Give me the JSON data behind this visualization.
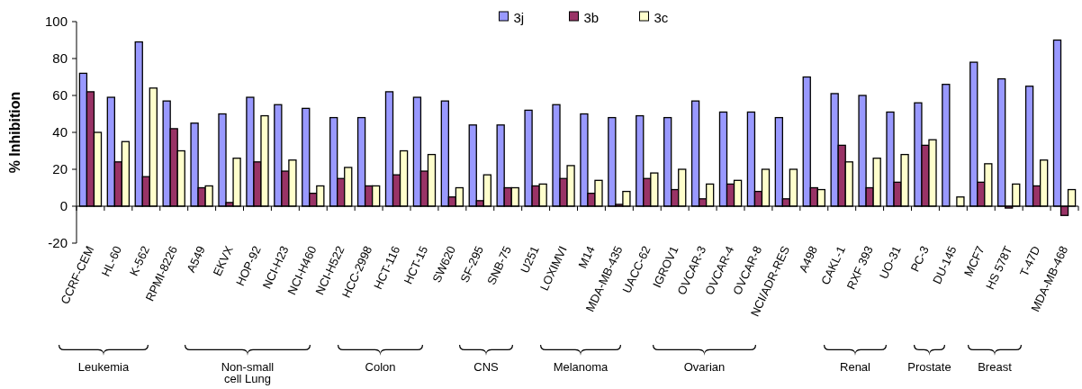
{
  "chart_data": {
    "type": "bar",
    "ylabel": "% Inhibition",
    "ylim": [
      -20,
      100
    ],
    "yticks": [
      -20,
      0,
      20,
      40,
      60,
      80,
      100
    ],
    "legend": "top",
    "categories": [
      "CCRF-CEM",
      "HL-60",
      "K-562",
      "RPMI-8226",
      "A549",
      "EKVX",
      "HOP-92",
      "NCI-H23",
      "NCI-H460",
      "NCI-H522",
      "HCC-2998",
      "HCT-116",
      "HCT-15",
      "SW620",
      "SF-295",
      "SNB-75",
      "U251",
      "LOXIMVI",
      "M14",
      "MDA-MB-435",
      "UACC-62",
      "IGROV1",
      "OVCAR-3",
      "OVCAR-4",
      "OVCAR-8",
      "NCI/ADR-RES",
      "A498",
      "CAKL-1",
      "RXF 393",
      "UO-31",
      "PC-3",
      "DU-145",
      "MCF7",
      "HS 578T",
      "T-47D",
      "MDA-MB-468"
    ],
    "series": [
      {
        "name": "3j",
        "color": "#9999ff",
        "values": [
          72,
          59,
          89,
          57,
          45,
          50,
          59,
          55,
          53,
          48,
          48,
          62,
          59,
          57,
          44,
          44,
          52,
          55,
          50,
          48,
          49,
          48,
          57,
          51,
          51,
          48,
          70,
          61,
          60,
          51,
          56,
          66,
          78,
          69,
          65,
          90
        ]
      },
      {
        "name": "3b",
        "color": "#993366",
        "values": [
          62,
          24,
          16,
          42,
          10,
          2,
          24,
          19,
          7,
          15,
          11,
          17,
          19,
          5,
          3,
          10,
          11,
          15,
          7,
          1,
          15,
          9,
          4,
          12,
          8,
          4,
          10,
          33,
          10,
          13,
          33,
          null,
          13,
          -1,
          11,
          -5
        ]
      },
      {
        "name": "3c",
        "color": "#ffffcc",
        "values": [
          40,
          35,
          64,
          30,
          11,
          26,
          49,
          25,
          11,
          21,
          11,
          30,
          28,
          10,
          17,
          10,
          12,
          22,
          14,
          8,
          18,
          20,
          12,
          14,
          20,
          20,
          9,
          24,
          26,
          28,
          36,
          5,
          23,
          12,
          25,
          9
        ]
      }
    ],
    "annotations": [
      "Leukemia",
      "Non-small cell Lung",
      "Colon",
      "CNS",
      "Melanoma",
      "Ovarian",
      "Renal",
      "Prostate",
      "Breast"
    ]
  }
}
